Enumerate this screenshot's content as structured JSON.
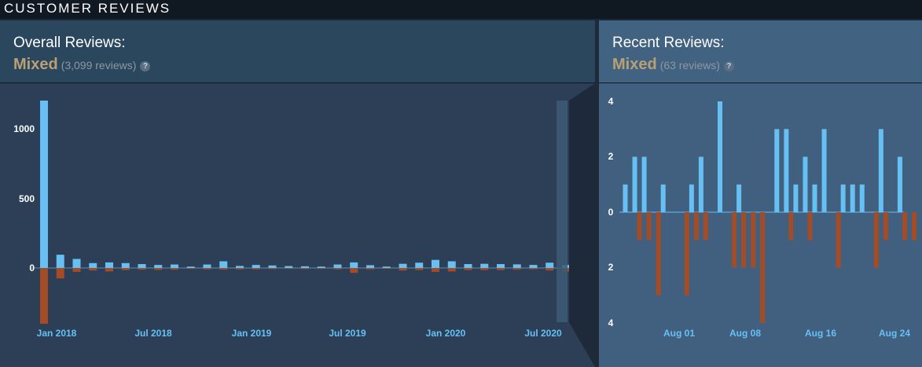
{
  "header": {
    "title": "CUSTOMER REVIEWS"
  },
  "overall": {
    "title": "Overall Reviews:",
    "rating": "Mixed",
    "count": "(3,099 reviews)",
    "help": "?"
  },
  "recent": {
    "title": "Recent Reviews:",
    "rating": "Mixed",
    "count": "(63 reviews)",
    "help": "?"
  },
  "colors": {
    "positive": "#66c0f4",
    "negative": "#a34c25",
    "rating": "#b9a074"
  },
  "chart_data": [
    {
      "type": "bar",
      "subtitle": "Overall Reviews",
      "y_ticks": [
        "1000",
        "500",
        "0"
      ],
      "x_tick_labels": [
        "Jan 2018",
        "Jul 2018",
        "Jan 2019",
        "Jul 2019",
        "Jan 2020",
        "Jul 2020"
      ],
      "ylim": [
        -400,
        1250
      ],
      "series": [
        {
          "values": [
            1200,
            95,
            65,
            35,
            40,
            35,
            28,
            22,
            25,
            10,
            25,
            48,
            15,
            22,
            18,
            14,
            12,
            10,
            25,
            40,
            20,
            10,
            30,
            38,
            58,
            48,
            28,
            30,
            28,
            26,
            22,
            38,
            22,
            32
          ]
        },
        {
          "values": [
            -400,
            -75,
            -28,
            -18,
            -25,
            -15,
            -12,
            -14,
            -12,
            -6,
            -10,
            -12,
            -10,
            -10,
            -8,
            -6,
            -8,
            -6,
            -10,
            -35,
            -10,
            -6,
            -18,
            -15,
            -28,
            -25,
            -15,
            -15,
            -15,
            -12,
            -10,
            -18,
            -25,
            -30
          ]
        }
      ],
      "grid": false
    },
    {
      "type": "bar",
      "subtitle": "Recent Reviews",
      "y_ticks": [
        "4",
        "2",
        "0",
        "2",
        "4"
      ],
      "x_tick_labels": [
        "Aug 01",
        "Aug 08",
        "Aug 16",
        "Aug 24"
      ],
      "ylim": [
        -4,
        4
      ],
      "series": [
        {
          "values": [
            1,
            2,
            2,
            0,
            1,
            0,
            0,
            1,
            2,
            0,
            4,
            0,
            1,
            0,
            0,
            0,
            3,
            3,
            1,
            2,
            1,
            3,
            0,
            1,
            1,
            1,
            0,
            3,
            0,
            2,
            0
          ]
        },
        {
          "values": [
            0,
            -1,
            -1,
            -3,
            0,
            0,
            -3,
            -1,
            -1,
            0,
            0,
            -2,
            -2,
            -2,
            -4,
            0,
            0,
            -1,
            0,
            -1,
            0,
            0,
            -2,
            0,
            0,
            0,
            -2,
            -1,
            0,
            -1,
            -1
          ]
        }
      ],
      "grid": false
    }
  ]
}
